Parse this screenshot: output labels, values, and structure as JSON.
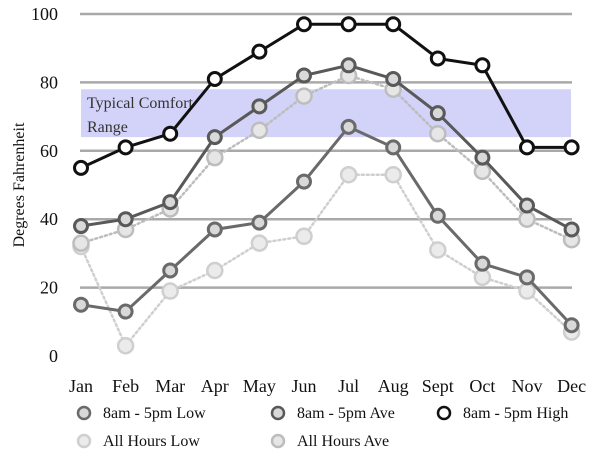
{
  "chart_data": {
    "type": "line",
    "categories": [
      "Jan",
      "Feb",
      "Mar",
      "Apr",
      "May",
      "Jun",
      "Jul",
      "Aug",
      "Sept",
      "Oct",
      "Nov",
      "Dec"
    ],
    "ylabel": "Degrees Fahrenheit",
    "xlabel": "",
    "ylim": [
      0,
      100
    ],
    "yticks": [
      0,
      20,
      40,
      60,
      80,
      100
    ],
    "grid": "horizontal",
    "legend_position": "bottom",
    "band": {
      "label_line1": "Typical Comfort",
      "label_line2": "Range",
      "from": 64,
      "to": 78,
      "color": "#c8c8f8"
    },
    "series": [
      {
        "name": "All Hours Low",
        "values": [
          32,
          3,
          19,
          25,
          33,
          35,
          53,
          53,
          31,
          23,
          19,
          7
        ],
        "color": "#cfcfcf",
        "style": "dotted",
        "marker_fill": "#ebebeb"
      },
      {
        "name": "All Hours Ave",
        "values": [
          33,
          37,
          43,
          58,
          66,
          76,
          82,
          78,
          65,
          54,
          40,
          34
        ],
        "color": "#bdbdbd",
        "style": "dotted",
        "marker_fill": "#e6e6e6"
      },
      {
        "name": "8am - 5pm Low",
        "values": [
          15,
          13,
          25,
          37,
          39,
          51,
          67,
          61,
          41,
          27,
          23,
          9
        ],
        "color": "#6a6a6a",
        "style": "solid",
        "marker_fill": "#d9d9d9"
      },
      {
        "name": "8am - 5pm Ave",
        "values": [
          38,
          40,
          45,
          64,
          73,
          82,
          85,
          81,
          71,
          58,
          44,
          37
        ],
        "color": "#595959",
        "style": "solid",
        "marker_fill": "#d9d9d9"
      },
      {
        "name": "8am - 5pm High",
        "values": [
          55,
          61,
          65,
          81,
          89,
          97,
          97,
          97,
          87,
          85,
          61,
          61
        ],
        "color": "#111111",
        "style": "solid",
        "marker_fill": "#ffffff"
      }
    ],
    "legend_order": [
      "8am - 5pm Low",
      "8am - 5pm Ave",
      "8am - 5pm High",
      "All Hours Low",
      "All Hours Ave"
    ]
  }
}
